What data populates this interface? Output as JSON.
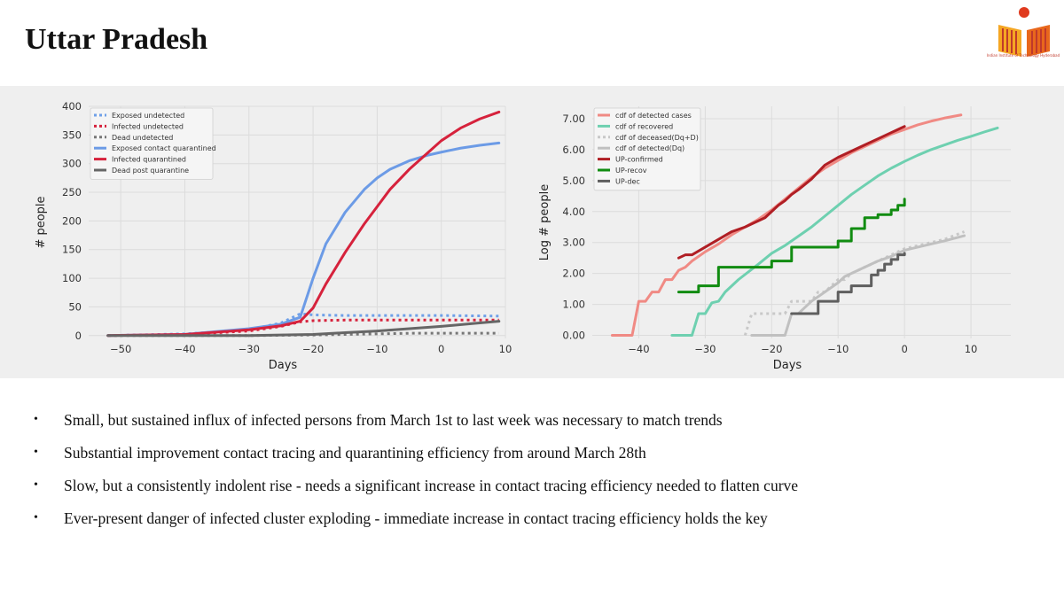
{
  "slide": {
    "title": "Uttar Pradesh",
    "bullets": [
      "Small, but sustained influx of infected persons from March 1st to last week was necessary to match trends",
      "Substantial improvement contact tracing and quarantining efficiency from around March 28th",
      "Slow, but a consistently indolent rise - needs a significant increase in contact tracing efficiency needed to flatten curve",
      "Ever-present danger of infected cluster exploding - immediate increase in contact tracing efficiency holds the key"
    ]
  },
  "logo": {
    "icon": "iit-hyderabad-logo",
    "caption": "Indian Institute of Technology Hyderabad"
  },
  "chart_data": [
    {
      "type": "line",
      "xlabel": "Days",
      "ylabel": "# people",
      "xlim": [
        -55,
        10
      ],
      "ylim": [
        -5,
        400
      ],
      "xticks": [
        -50,
        -40,
        -30,
        -20,
        -10,
        0,
        10
      ],
      "yticks": [
        0,
        50,
        100,
        150,
        200,
        250,
        300,
        350,
        400
      ],
      "grid": true,
      "legend": "top-left",
      "series": [
        {
          "name": "Exposed undetected",
          "color": "#6fa0e8",
          "style": "dotted",
          "x": [
            -52,
            -40,
            -30,
            -25,
            -22,
            -20,
            -15,
            -10,
            0,
            9
          ],
          "y": [
            0,
            3,
            10,
            22,
            38,
            36,
            35,
            35,
            35,
            34
          ]
        },
        {
          "name": "Infected undetected",
          "color": "#d6223c",
          "style": "dotted",
          "x": [
            -52,
            -40,
            -30,
            -25,
            -22,
            -20,
            -15,
            -10,
            0,
            9
          ],
          "y": [
            0,
            2,
            8,
            16,
            24,
            26,
            27,
            27,
            27,
            27
          ]
        },
        {
          "name": "Dead undetected",
          "color": "#777777",
          "style": "dotted",
          "x": [
            -52,
            -30,
            -20,
            -15,
            -10,
            -5,
            0,
            5,
            9
          ],
          "y": [
            0,
            0,
            1,
            2,
            3,
            4,
            4,
            4,
            4
          ]
        },
        {
          "name": "Exposed contact quarantined",
          "color": "#6c9be6",
          "style": "solid",
          "x": [
            -52,
            -40,
            -30,
            -25,
            -22,
            -20,
            -18,
            -15,
            -12,
            -10,
            -8,
            -5,
            -2,
            0,
            3,
            6,
            9
          ],
          "y": [
            0,
            2,
            12,
            20,
            32,
            100,
            160,
            215,
            255,
            275,
            290,
            305,
            315,
            320,
            327,
            332,
            336
          ]
        },
        {
          "name": "Infected quarantined",
          "color": "#d6223c",
          "style": "solid",
          "x": [
            -52,
            -40,
            -30,
            -25,
            -22,
            -20,
            -18,
            -15,
            -12,
            -10,
            -8,
            -5,
            -2,
            0,
            3,
            6,
            9
          ],
          "y": [
            0,
            2,
            10,
            17,
            25,
            48,
            90,
            145,
            195,
            225,
            255,
            290,
            320,
            340,
            362,
            378,
            390
          ]
        },
        {
          "name": "Dead post quarantine",
          "color": "#666666",
          "style": "solid",
          "x": [
            -52,
            -30,
            -20,
            -15,
            -10,
            -5,
            0,
            5,
            9
          ],
          "y": [
            0,
            0,
            2,
            5,
            8,
            12,
            16,
            21,
            25
          ]
        }
      ]
    },
    {
      "type": "line",
      "xlabel": "Days",
      "ylabel": "Log # people",
      "xlim": [
        -47,
        16
      ],
      "ylim": [
        -0.1,
        7.4
      ],
      "xticks": [
        -40,
        -30,
        -20,
        -10,
        0,
        10
      ],
      "yticks": [
        "0.00",
        "1.00",
        "2.00",
        "3.00",
        "4.00",
        "5.00",
        "6.00",
        "7.00"
      ],
      "grid": true,
      "legend": "top-left",
      "series": [
        {
          "name": "cdf of detected cases",
          "color": "#f08a84",
          "style": "solid",
          "x": [
            -44,
            -41,
            -40,
            -39,
            -38,
            -37,
            -36,
            -35,
            -34,
            -33,
            -32,
            -30,
            -28,
            -26,
            -24,
            -22,
            -20,
            -18,
            -16,
            -14,
            -12,
            -10,
            -8,
            -6,
            -4,
            -2,
            0,
            2,
            4,
            6,
            8.5
          ],
          "y": [
            0,
            0,
            1.1,
            1.1,
            1.4,
            1.4,
            1.8,
            1.8,
            2.1,
            2.2,
            2.4,
            2.7,
            2.95,
            3.25,
            3.5,
            3.75,
            4.05,
            4.4,
            4.75,
            5.1,
            5.4,
            5.65,
            5.9,
            6.1,
            6.3,
            6.5,
            6.65,
            6.8,
            6.92,
            7.02,
            7.12
          ]
        },
        {
          "name": "cdf of recovered",
          "color": "#6ed0b0",
          "style": "solid",
          "x": [
            -35,
            -32,
            -31,
            -30,
            -29,
            -28,
            -27,
            -25,
            -22,
            -20,
            -18,
            -16,
            -14,
            -12,
            -10,
            -8,
            -6,
            -4,
            -2,
            0,
            2,
            4,
            6,
            8,
            10,
            12,
            14
          ],
          "y": [
            0,
            0,
            0.7,
            0.7,
            1.05,
            1.1,
            1.4,
            1.8,
            2.3,
            2.65,
            2.9,
            3.2,
            3.5,
            3.85,
            4.2,
            4.55,
            4.85,
            5.15,
            5.4,
            5.62,
            5.82,
            6.0,
            6.15,
            6.3,
            6.43,
            6.57,
            6.7
          ]
        },
        {
          "name": "cdf of deceased(Dq+D)",
          "color": "#c8c8c8",
          "style": "dotted",
          "x": [
            -24,
            -23,
            -22,
            -18,
            -17,
            -16,
            -14,
            -13,
            -12,
            -10,
            -9,
            -8,
            -6,
            -4,
            -2,
            0,
            2,
            4,
            6,
            9
          ],
          "y": [
            0,
            0.7,
            0.7,
            0.7,
            1.1,
            1.1,
            1.1,
            1.4,
            1.4,
            1.8,
            1.8,
            2.0,
            2.2,
            2.4,
            2.6,
            2.8,
            2.9,
            3.0,
            3.1,
            3.35
          ]
        },
        {
          "name": "cdf of detected(Dq)",
          "color": "#c0c0c0",
          "style": "solid",
          "x": [
            -23,
            -18,
            -17,
            -16,
            -14,
            -12,
            -10,
            -9,
            -8,
            -6,
            -4,
            -2,
            0,
            2,
            4,
            6,
            9
          ],
          "y": [
            0,
            0,
            0.7,
            0.7,
            1.1,
            1.4,
            1.7,
            1.9,
            2.0,
            2.2,
            2.4,
            2.55,
            2.75,
            2.85,
            2.95,
            3.05,
            3.22
          ]
        },
        {
          "name": "UP-confirmed",
          "color": "#b01e24",
          "style": "solid",
          "x": [
            -34,
            -33,
            -32,
            -30,
            -28,
            -26,
            -24,
            -22,
            -21,
            -20,
            -19,
            -18,
            -17,
            -16,
            -14,
            -12,
            -10,
            -8,
            -6,
            -4,
            -2,
            0
          ],
          "y": [
            2.5,
            2.6,
            2.6,
            2.85,
            3.1,
            3.35,
            3.5,
            3.7,
            3.8,
            4.0,
            4.2,
            4.35,
            4.55,
            4.7,
            5.05,
            5.5,
            5.75,
            5.95,
            6.15,
            6.35,
            6.55,
            6.75
          ]
        },
        {
          "name": "UP-recov",
          "color": "#118c11",
          "style": "step",
          "x": [
            -34,
            -32,
            -31,
            -28,
            -24,
            -20,
            -17,
            -14,
            -10,
            -9,
            -8,
            -7,
            -6,
            -5,
            -4,
            -3,
            -2,
            -1,
            0
          ],
          "y": [
            1.4,
            1.4,
            1.6,
            2.2,
            2.2,
            2.4,
            2.85,
            2.85,
            3.05,
            3.05,
            3.45,
            3.45,
            3.8,
            3.8,
            3.9,
            3.9,
            4.05,
            4.2,
            4.4
          ]
        },
        {
          "name": "UP-dec",
          "color": "#5f5f5f",
          "style": "step",
          "x": [
            -17,
            -14,
            -13,
            -12,
            -10,
            -9,
            -8,
            -7,
            -6,
            -5,
            -4,
            -3,
            -2,
            -1,
            0
          ],
          "y": [
            0.7,
            0.7,
            1.1,
            1.1,
            1.4,
            1.4,
            1.6,
            1.6,
            1.6,
            1.95,
            2.1,
            2.3,
            2.45,
            2.6,
            2.65
          ]
        }
      ]
    }
  ]
}
